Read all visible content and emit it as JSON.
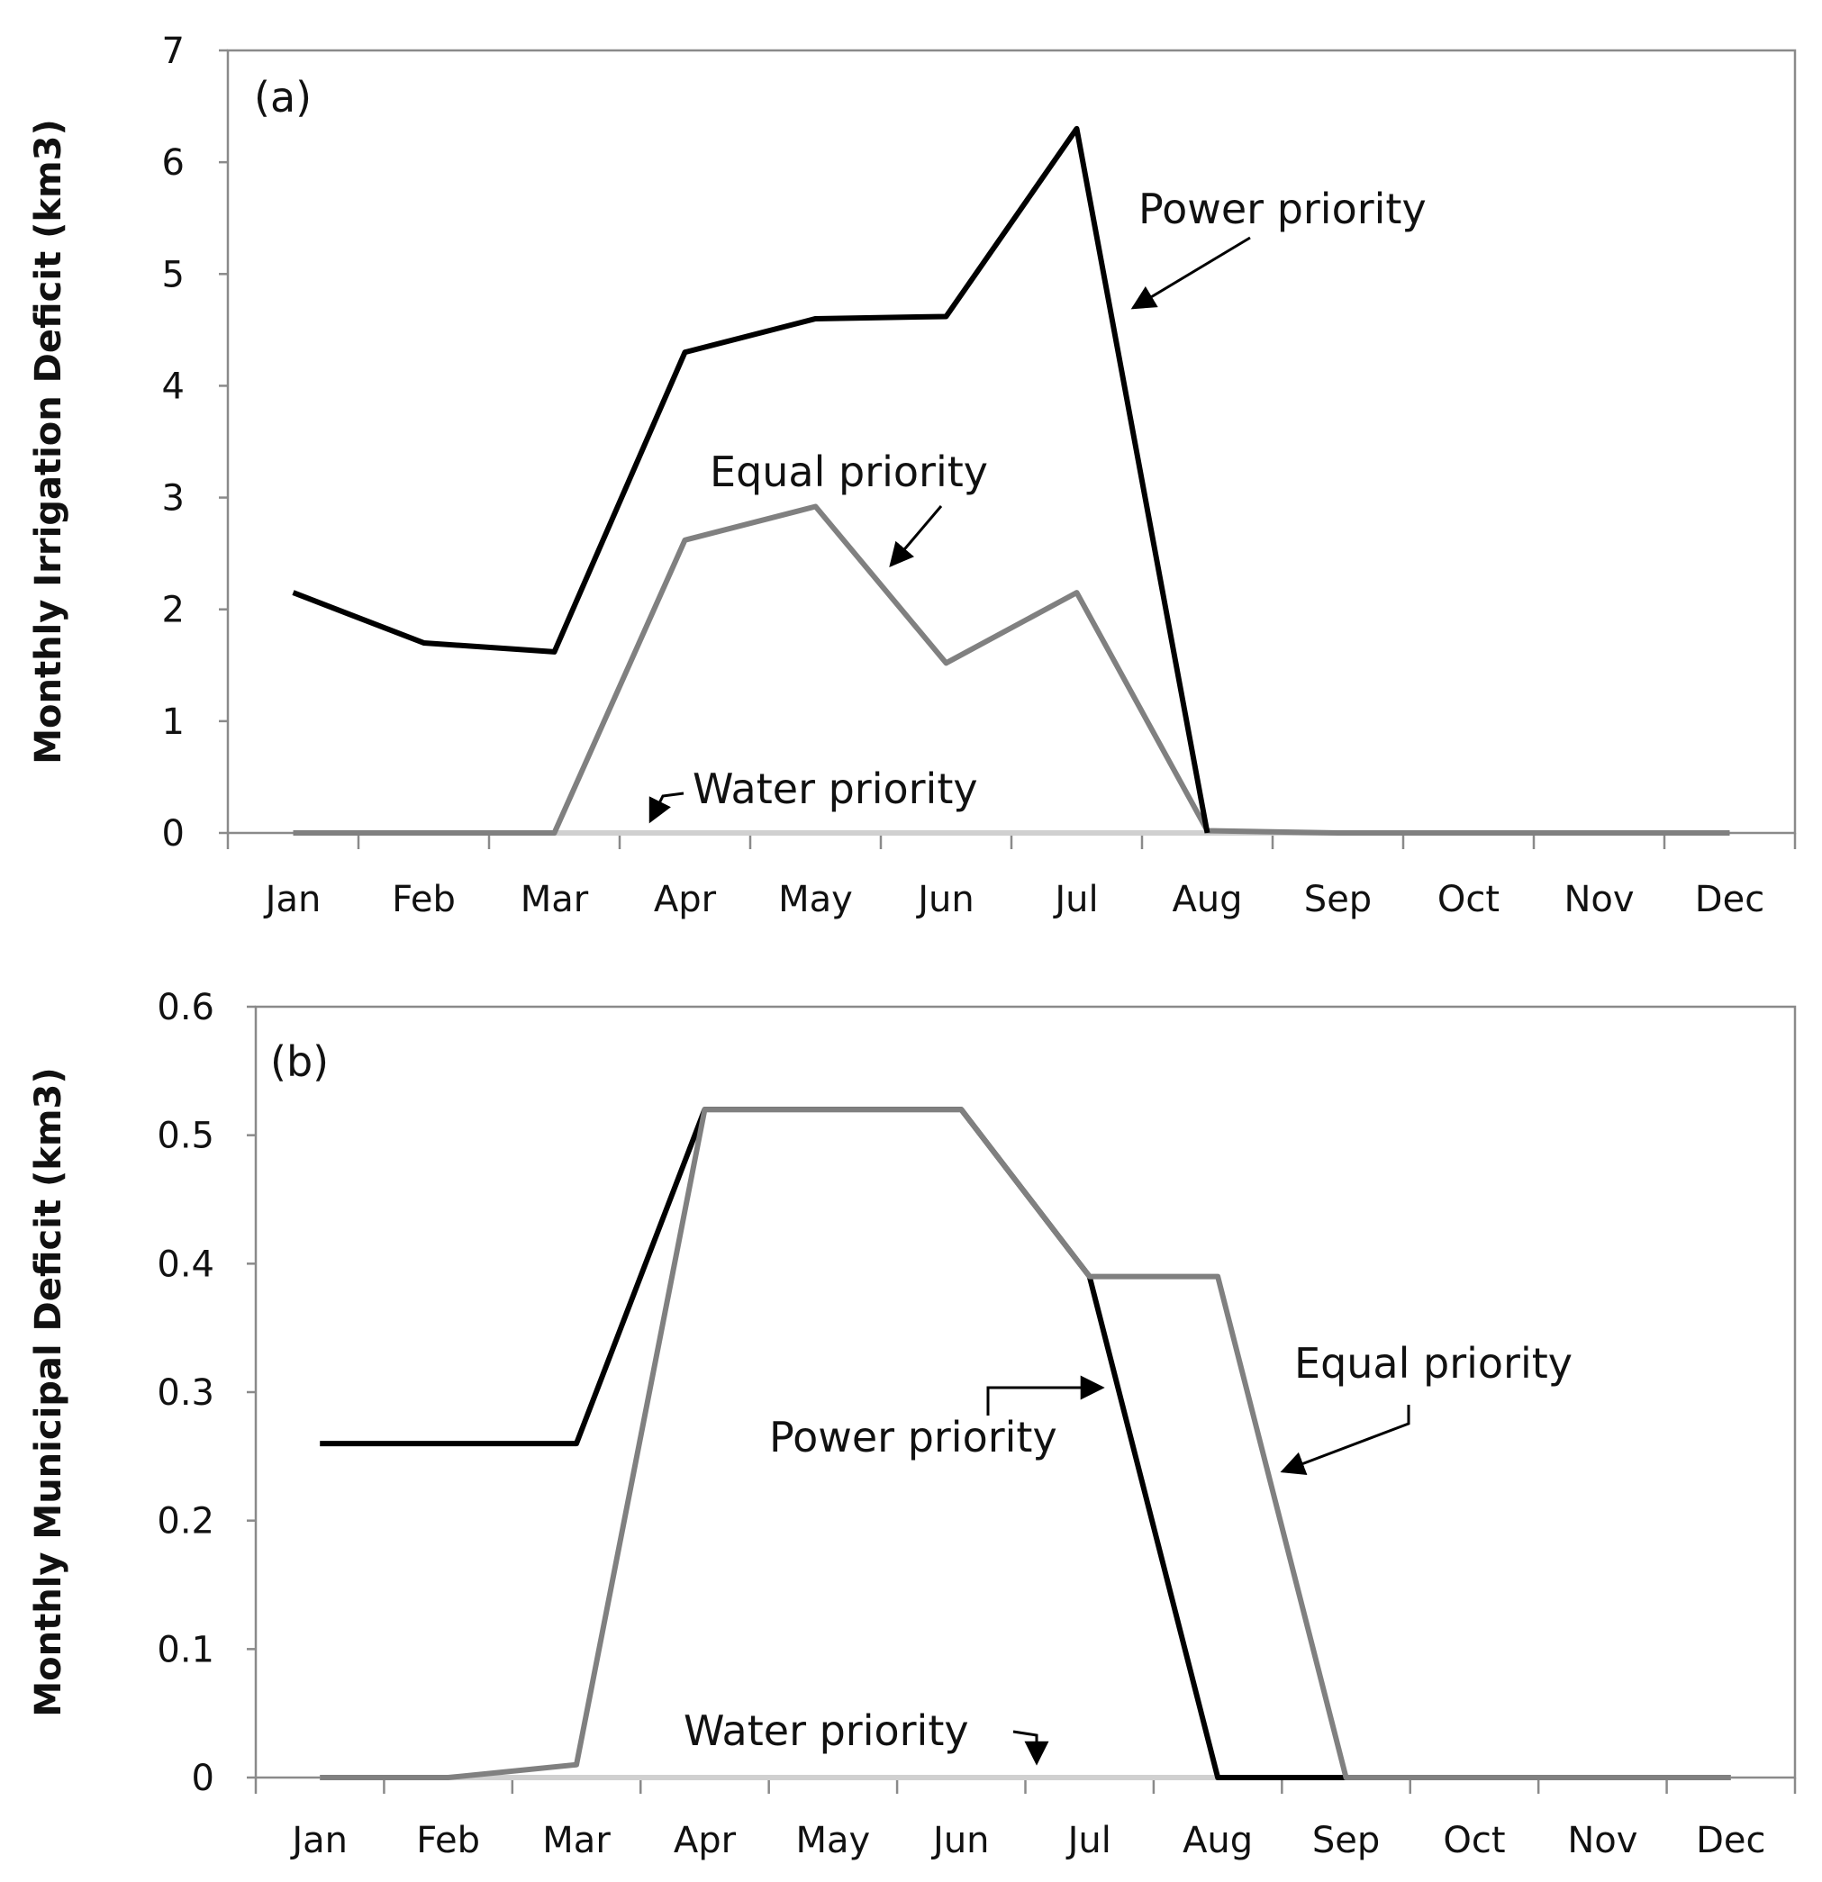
{
  "chart_data": [
    {
      "type": "line",
      "panel_label": "(a)",
      "ylabel": "Monthly Irrigation Deficit (km3)",
      "xlabel": "",
      "categories": [
        "Jan",
        "Feb",
        "Mar",
        "Apr",
        "May",
        "Jun",
        "Jul",
        "Aug",
        "Sep",
        "Oct",
        "Nov",
        "Dec"
      ],
      "ylim": [
        0,
        7
      ],
      "yticks": [
        0,
        1,
        2,
        3,
        4,
        5,
        6,
        7
      ],
      "ytick_labels": [
        "0",
        "1",
        "2",
        "3",
        "4",
        "5",
        "6",
        "7"
      ],
      "grid": false,
      "series": [
        {
          "name": "Water priority",
          "color": "#d0d0d0",
          "values": [
            0,
            0,
            0,
            0,
            0,
            0,
            0,
            0,
            0,
            0,
            0,
            0
          ]
        },
        {
          "name": "Equal priority",
          "color": "#808080",
          "values": [
            0,
            0,
            0,
            2.62,
            2.92,
            1.52,
            2.15,
            0.02,
            0,
            0,
            0,
            0
          ]
        },
        {
          "name": "Power priority",
          "color": "#000000",
          "values": [
            2.15,
            1.7,
            1.62,
            4.3,
            4.6,
            4.62,
            6.3,
            0,
            null,
            null,
            null,
            null
          ]
        }
      ],
      "annotations": [
        "Power priority",
        "Equal priority",
        "Water priority"
      ]
    },
    {
      "type": "line",
      "panel_label": "(b)",
      "ylabel": "Monthly Municipal Deficit (km3)",
      "xlabel": "",
      "categories": [
        "Jan",
        "Feb",
        "Mar",
        "Apr",
        "May",
        "Jun",
        "Jul",
        "Aug",
        "Sep",
        "Oct",
        "Nov",
        "Dec"
      ],
      "ylim": [
        0,
        0.6
      ],
      "yticks": [
        0,
        0.1,
        0.2,
        0.3,
        0.4,
        0.5,
        0.6
      ],
      "ytick_labels": [
        "0",
        "0.1",
        "0.2",
        "0.3",
        "0.4",
        "0.5",
        "0.6"
      ],
      "grid": false,
      "series": [
        {
          "name": "Water priority",
          "color": "#d0d0d0",
          "values": [
            0,
            0,
            0,
            0,
            0,
            0,
            0,
            0,
            0,
            0,
            0,
            0
          ]
        },
        {
          "name": "Power priority",
          "color": "#000000",
          "values": [
            0.26,
            0.26,
            0.26,
            0.52,
            0.52,
            0.52,
            0.39,
            0,
            0,
            null,
            null,
            null
          ]
        },
        {
          "name": "Equal priority",
          "color": "#808080",
          "values": [
            0,
            0,
            0.01,
            0.52,
            0.52,
            0.52,
            0.39,
            0.39,
            0,
            0,
            0,
            0
          ]
        }
      ],
      "annotations": [
        "Equal priority",
        "Power priority",
        "Water priority"
      ]
    }
  ]
}
